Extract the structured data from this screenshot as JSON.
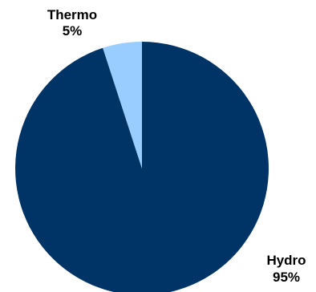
{
  "chart_data": {
    "type": "pie",
    "title": "",
    "legend": "none",
    "slices": [
      {
        "label": "Hydro",
        "value": 95,
        "value_label": "95%",
        "color": "#003366"
      },
      {
        "label": "Thermo",
        "value": 5,
        "value_label": "5%",
        "color": "#99ccff"
      }
    ]
  }
}
